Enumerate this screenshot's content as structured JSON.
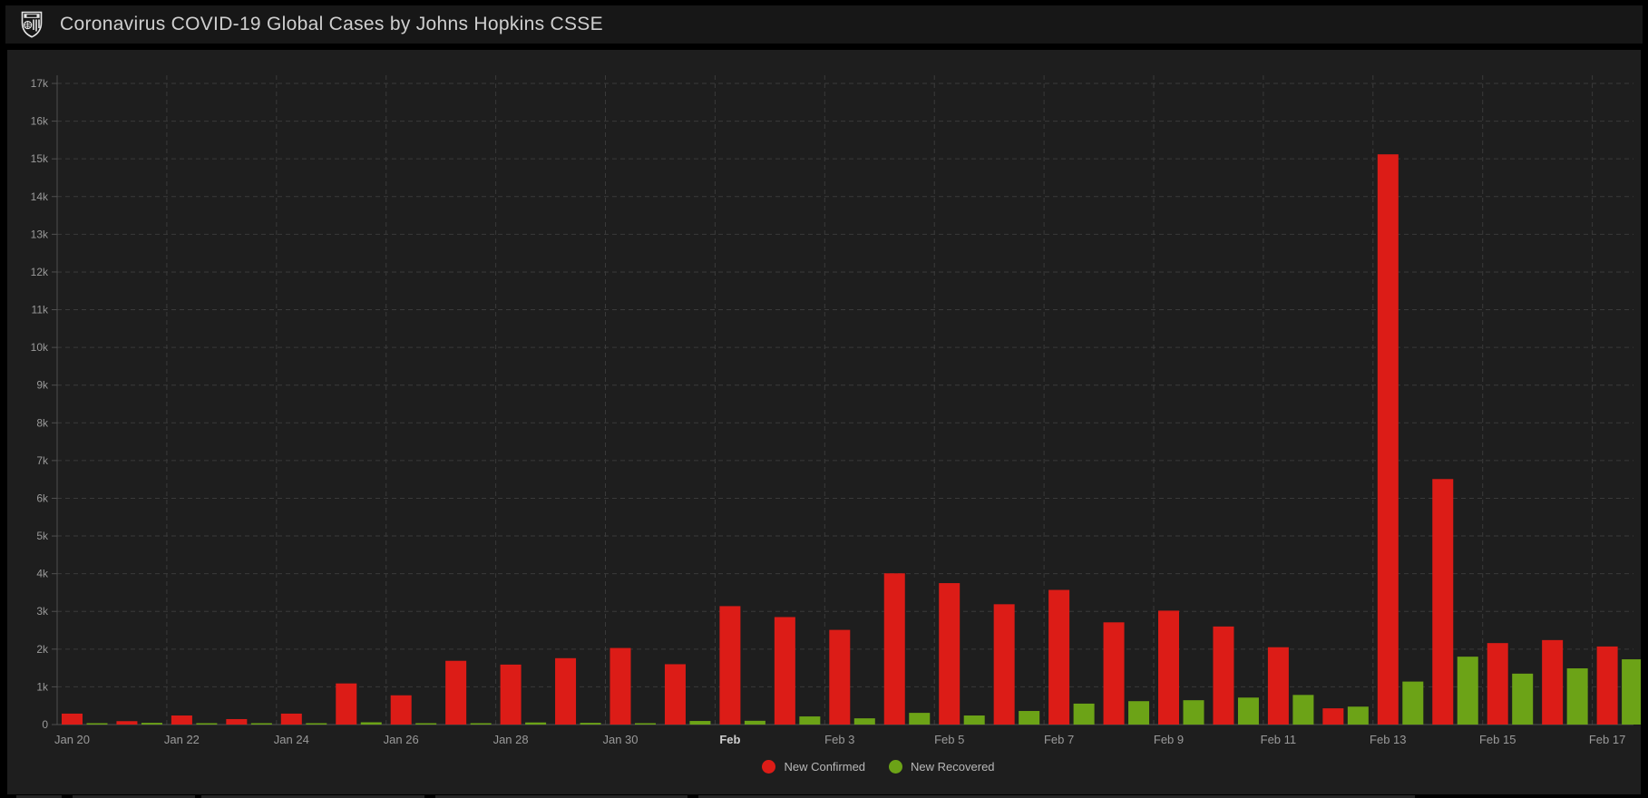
{
  "header": {
    "title": "Coronavirus COVID-19 Global Cases by Johns Hopkins CSSE",
    "logo": "johns-hopkins-shield"
  },
  "colors": {
    "page_bg": "#000000",
    "header_bg": "#171717",
    "panel_bg": "#1e1e1e",
    "grid": "#3a3a3a",
    "axis": "#4f4f4f",
    "tick_text": "#9a9a9a",
    "month_tick_text": "#cfcfcf",
    "confirmed_red": "#dc1c17",
    "recovered_green": "#6ca317"
  },
  "legend": {
    "items": [
      {
        "label": "New Confirmed",
        "color": "#dc1c17"
      },
      {
        "label": "New Recovered",
        "color": "#6ca317"
      }
    ]
  },
  "chart_data": {
    "type": "bar",
    "title": "",
    "xlabel": "",
    "ylabel": "",
    "grid": "dashed",
    "legend_position": "bottom",
    "ylim": [
      0,
      17000
    ],
    "y_tick_step": 1000,
    "y_tick_labels": [
      "0",
      "1k",
      "2k",
      "3k",
      "4k",
      "5k",
      "6k",
      "7k",
      "8k",
      "9k",
      "10k",
      "11k",
      "12k",
      "13k",
      "14k",
      "15k",
      "16k",
      "17k"
    ],
    "categories": [
      "Jan 20",
      "Jan 21",
      "Jan 22",
      "Jan 23",
      "Jan 24",
      "Jan 25",
      "Jan 26",
      "Jan 27",
      "Jan 28",
      "Jan 29",
      "Jan 30",
      "Jan 31",
      "Feb 1",
      "Feb 2",
      "Feb 3",
      "Feb 4",
      "Feb 5",
      "Feb 6",
      "Feb 7",
      "Feb 8",
      "Feb 9",
      "Feb 10",
      "Feb 11",
      "Feb 12",
      "Feb 13",
      "Feb 14",
      "Feb 15",
      "Feb 16",
      "Feb 17"
    ],
    "x_tick_labels": [
      {
        "index": 0,
        "label": "Jan 20"
      },
      {
        "index": 2,
        "label": "Jan 22"
      },
      {
        "index": 4,
        "label": "Jan 24"
      },
      {
        "index": 6,
        "label": "Jan 26"
      },
      {
        "index": 8,
        "label": "Jan 28"
      },
      {
        "index": 10,
        "label": "Jan 30"
      },
      {
        "index": 12,
        "label": "Feb",
        "bold": true
      },
      {
        "index": 14,
        "label": "Feb 3"
      },
      {
        "index": 16,
        "label": "Feb 5"
      },
      {
        "index": 18,
        "label": "Feb 7"
      },
      {
        "index": 20,
        "label": "Feb 9"
      },
      {
        "index": 22,
        "label": "Feb 11"
      },
      {
        "index": 24,
        "label": "Feb 13"
      },
      {
        "index": 26,
        "label": "Feb 15"
      },
      {
        "index": 28,
        "label": "Feb 17"
      }
    ],
    "series": [
      {
        "name": "New Confirmed",
        "color": "#dc1c17",
        "values": [
          290,
          90,
          240,
          145,
          290,
          1090,
          775,
          1690,
          1590,
          1760,
          2030,
          1600,
          3140,
          2850,
          2510,
          4010,
          3750,
          3190,
          3570,
          2710,
          3020,
          2600,
          2050,
          430,
          15120,
          6510,
          2160,
          2240,
          2070
        ]
      },
      {
        "name": "New Recovered",
        "color": "#6ca317",
        "values": [
          25,
          45,
          25,
          20,
          25,
          60,
          20,
          25,
          55,
          45,
          25,
          95,
          100,
          215,
          165,
          310,
          240,
          360,
          555,
          620,
          645,
          715,
          785,
          475,
          1140,
          1800,
          1350,
          1490,
          1730
        ]
      }
    ]
  }
}
